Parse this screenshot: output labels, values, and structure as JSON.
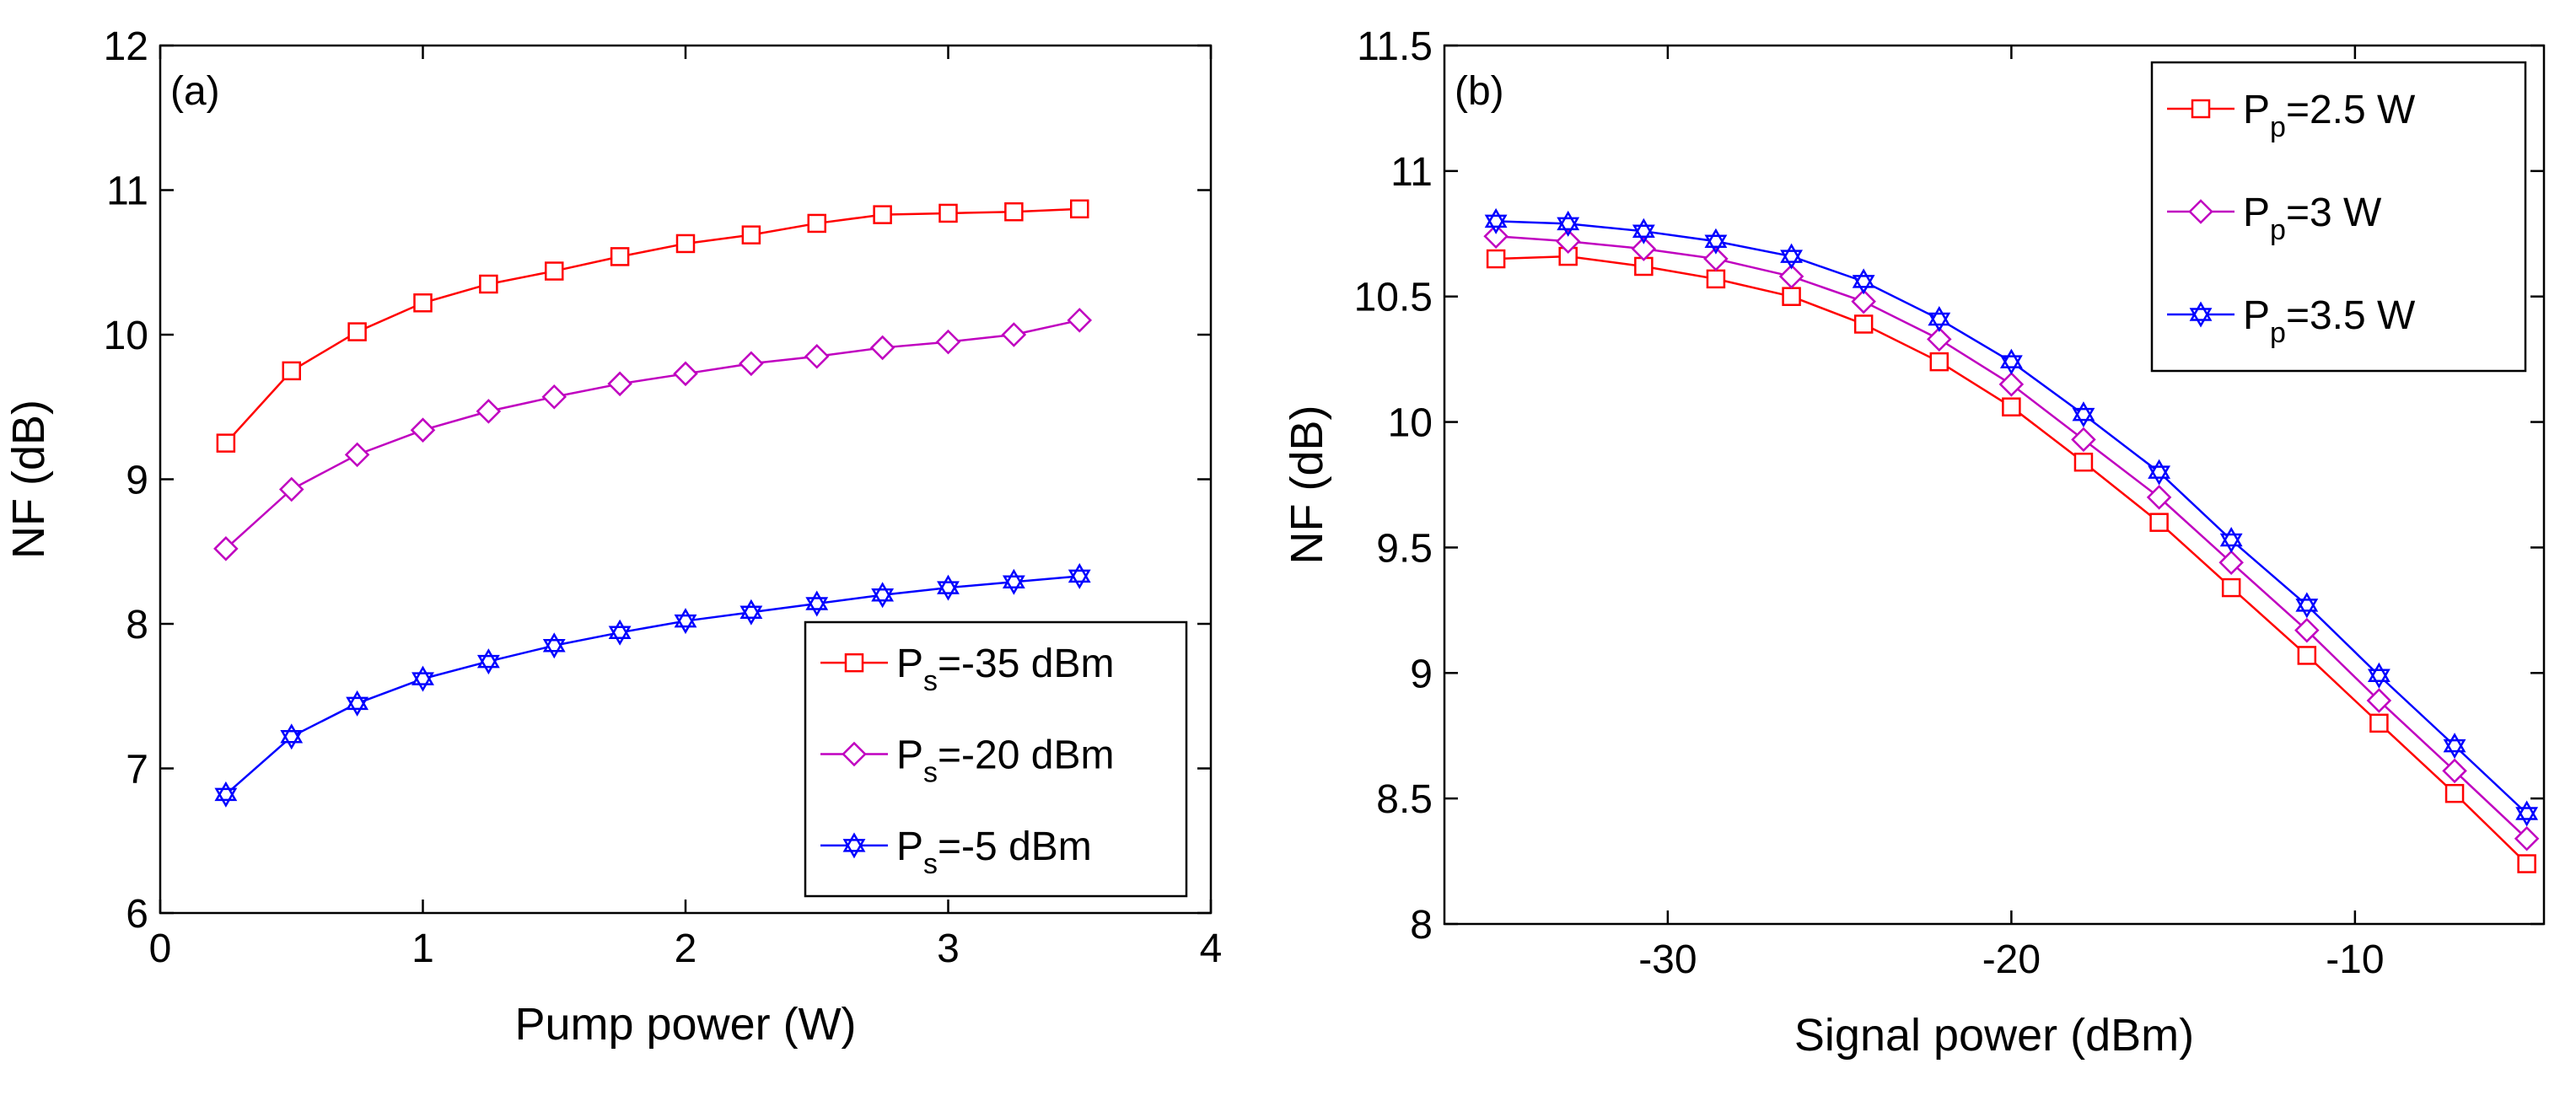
{
  "chart_data": [
    {
      "type": "line",
      "panel_label": "(a)",
      "xlabel": "Pump power (W)",
      "ylabel": "NF (dB)",
      "xlim": [
        0,
        4
      ],
      "ylim": [
        6,
        12
      ],
      "xticks": [
        "0",
        "1",
        "2",
        "3",
        "4"
      ],
      "yticks": [
        "6",
        "7",
        "8",
        "9",
        "10",
        "11",
        "12"
      ],
      "x": [
        0.25,
        0.5,
        0.75,
        1.0,
        1.25,
        1.5,
        1.75,
        2.0,
        2.25,
        2.5,
        2.75,
        3.0,
        3.25,
        3.5
      ],
      "legend_position": "bottom-right",
      "series": [
        {
          "name": "Ps=-35 dBm",
          "legend_main": "P",
          "legend_sub": "s",
          "legend_rest": "=-35 dBm",
          "color": "#ff0000",
          "marker": "square",
          "values": [
            9.25,
            9.75,
            10.02,
            10.22,
            10.35,
            10.44,
            10.54,
            10.63,
            10.69,
            10.77,
            10.83,
            10.84,
            10.85,
            10.87
          ]
        },
        {
          "name": "Ps=-20 dBm",
          "legend_main": "P",
          "legend_sub": "s",
          "legend_rest": "=-20 dBm",
          "color": "#c000c0",
          "marker": "diamond",
          "values": [
            8.52,
            8.93,
            9.17,
            9.34,
            9.47,
            9.57,
            9.66,
            9.73,
            9.8,
            9.85,
            9.91,
            9.95,
            10.0,
            10.1
          ]
        },
        {
          "name": "Ps=-5 dBm",
          "legend_main": "P",
          "legend_sub": "s",
          "legend_rest": "=-5 dBm",
          "color": "#0000ff",
          "marker": "hexagram",
          "values": [
            6.82,
            7.22,
            7.45,
            7.62,
            7.74,
            7.85,
            7.94,
            8.02,
            8.08,
            8.14,
            8.2,
            8.25,
            8.29,
            8.33
          ]
        }
      ]
    },
    {
      "type": "line",
      "panel_label": "(b)",
      "xlabel": "Signal power (dBm)",
      "ylabel": "NF (dB)",
      "xlim": [
        -36.5,
        -4.5
      ],
      "ylim": [
        8,
        11.5
      ],
      "xticks": [
        "-30",
        "-20",
        "-10"
      ],
      "xtick_values": [
        -30,
        -20,
        -10
      ],
      "yticks": [
        "8",
        "8.5",
        "9",
        "9.5",
        "10",
        "10.5",
        "11",
        "11.5"
      ],
      "x": [
        -35,
        -32.9,
        -30.7,
        -28.6,
        -26.4,
        -24.3,
        -22.1,
        -20,
        -17.9,
        -15.7,
        -13.6,
        -11.4,
        -9.3,
        -7.1,
        -5
      ],
      "legend_position": "top-right",
      "series": [
        {
          "name": "Pp=2.5 W",
          "legend_main": "P",
          "legend_sub": "p",
          "legend_rest": "=2.5 W",
          "color": "#ff0000",
          "marker": "square",
          "values": [
            10.65,
            10.66,
            10.62,
            10.57,
            10.5,
            10.39,
            10.24,
            10.06,
            9.84,
            9.6,
            9.34,
            9.07,
            8.8,
            8.52,
            8.24
          ]
        },
        {
          "name": "Pp=3 W",
          "legend_main": "P",
          "legend_sub": "p",
          "legend_rest": "=3 W",
          "color": "#c000c0",
          "marker": "diamond",
          "values": [
            10.74,
            10.72,
            10.69,
            10.65,
            10.58,
            10.48,
            10.33,
            10.15,
            9.93,
            9.7,
            9.44,
            9.17,
            8.89,
            8.61,
            8.34
          ]
        },
        {
          "name": "Pp=3.5 W",
          "legend_main": "P",
          "legend_sub": "p",
          "legend_rest": "=3.5 W",
          "color": "#0000ff",
          "marker": "hexagram",
          "values": [
            10.8,
            10.79,
            10.76,
            10.72,
            10.66,
            10.56,
            10.41,
            10.24,
            10.03,
            9.8,
            9.53,
            9.27,
            8.99,
            8.71,
            8.44
          ]
        }
      ]
    }
  ]
}
